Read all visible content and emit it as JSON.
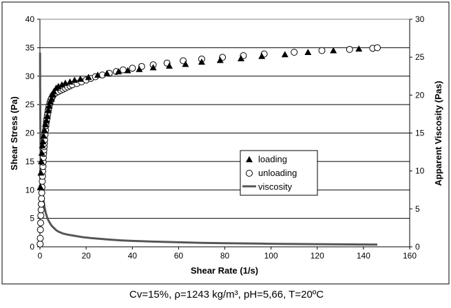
{
  "chart_data": {
    "type": "scatter",
    "xlabel": "Shear Rate (1/s)",
    "ylabel": "Shear Stress (Pa)",
    "y2label": "Apparent Viscosity (Pas)",
    "caption": "Cv=15%, ρ=1243 kg/m³, pH=5,66, T=20ºC",
    "xlim": [
      0,
      160
    ],
    "ylim": [
      0,
      40
    ],
    "y2lim": [
      0,
      30
    ],
    "xticks": [
      "0",
      "20",
      "40",
      "60",
      "80",
      "100",
      "120",
      "140",
      "160"
    ],
    "yticks": [
      "0",
      "5",
      "10",
      "15",
      "20",
      "25",
      "30",
      "35",
      "40"
    ],
    "y2ticks": [
      "0",
      "5",
      "10",
      "15",
      "20",
      "25",
      "30"
    ],
    "grid": "horizontal",
    "legend_position": "center-right",
    "series": [
      {
        "name": "loading",
        "marker": "filled-triangle",
        "axis": "left",
        "x": [
          0.2,
          0.4,
          0.6,
          0.8,
          1.0,
          1.3,
          1.6,
          2.0,
          2.4,
          2.8,
          3.2,
          3.6,
          4.0,
          4.5,
          5.0,
          5.5,
          6.0,
          7.0,
          8.0,
          9.5,
          11,
          13,
          15,
          17.5,
          21,
          25,
          29,
          34,
          38,
          43,
          49,
          56,
          63,
          70,
          78,
          87,
          96,
          106,
          116,
          127,
          138
        ],
        "y": [
          10.5,
          13.0,
          15.0,
          16.5,
          17.8,
          18.5,
          19.5,
          20.5,
          21.5,
          22.2,
          23.0,
          24.0,
          24.8,
          25.5,
          26.0,
          26.8,
          27.3,
          27.9,
          28.2,
          28.5,
          28.8,
          29.0,
          29.3,
          29.5,
          29.8,
          30.2,
          30.5,
          30.8,
          31.0,
          31.2,
          31.5,
          31.8,
          32.1,
          32.5,
          32.8,
          33.1,
          33.5,
          33.8,
          34.2,
          34.5,
          34.8
        ]
      },
      {
        "name": "unloading",
        "marker": "open-circle",
        "axis": "left",
        "x": [
          0.1,
          0.15,
          0.2,
          0.3,
          0.4,
          0.5,
          0.6,
          0.7,
          0.8,
          0.9,
          1.0,
          1.1,
          1.2,
          1.3,
          1.4,
          1.5,
          1.6,
          1.7,
          1.8,
          1.9,
          2.0,
          2.2,
          2.4,
          2.6,
          2.8,
          3.0,
          3.2,
          3.4,
          3.6,
          3.8,
          4.0,
          4.3,
          4.6,
          5.0,
          5.5,
          6.0,
          7.0,
          8.0,
          9.0,
          10,
          11,
          12,
          13,
          14,
          16,
          18,
          20,
          22,
          24,
          27,
          30,
          33,
          36,
          40,
          44,
          49,
          55,
          62,
          70,
          79,
          88,
          97,
          110,
          122,
          134,
          144,
          146
        ],
        "y": [
          0.5,
          1.5,
          3.0,
          4.2,
          5.5,
          6.5,
          7.5,
          8.5,
          9.5,
          10.5,
          11.5,
          12.4,
          13.3,
          14.1,
          14.9,
          15.7,
          16.4,
          17.0,
          17.6,
          18.2,
          18.8,
          19.7,
          20.5,
          21.3,
          22.0,
          22.5,
          23.0,
          23.5,
          24.0,
          24.4,
          24.8,
          25.3,
          25.7,
          26.1,
          26.5,
          26.8,
          27.1,
          27.3,
          27.5,
          27.7,
          27.9,
          28.1,
          28.3,
          28.5,
          28.7,
          29.0,
          29.3,
          29.6,
          29.9,
          30.2,
          30.5,
          30.8,
          31.1,
          31.4,
          31.7,
          32.0,
          32.3,
          32.7,
          33.0,
          33.3,
          33.6,
          33.9,
          34.2,
          34.5,
          34.7,
          34.9,
          35.0
        ]
      },
      {
        "name": "viscosity",
        "marker": "line",
        "axis": "right",
        "x": [
          0.05,
          0.1,
          0.2,
          0.3,
          0.5,
          0.7,
          1.0,
          1.3,
          1.6,
          2.0,
          2.5,
          3.0,
          3.5,
          4.0,
          5.0,
          6.0,
          7.0,
          8.0,
          10,
          12,
          15,
          18,
          22,
          26,
          30,
          35,
          40,
          50,
          60,
          70,
          80,
          90,
          100,
          110,
          120,
          130,
          140,
          146
        ],
        "y": [
          25.6,
          21.0,
          14.5,
          12.0,
          10.0,
          9.0,
          7.8,
          6.8,
          6.0,
          5.2,
          4.5,
          4.0,
          3.6,
          3.3,
          2.8,
          2.5,
          2.2,
          2.0,
          1.75,
          1.6,
          1.45,
          1.3,
          1.15,
          1.05,
          0.95,
          0.85,
          0.78,
          0.68,
          0.6,
          0.53,
          0.48,
          0.44,
          0.4,
          0.37,
          0.35,
          0.33,
          0.31,
          0.3
        ]
      }
    ]
  }
}
